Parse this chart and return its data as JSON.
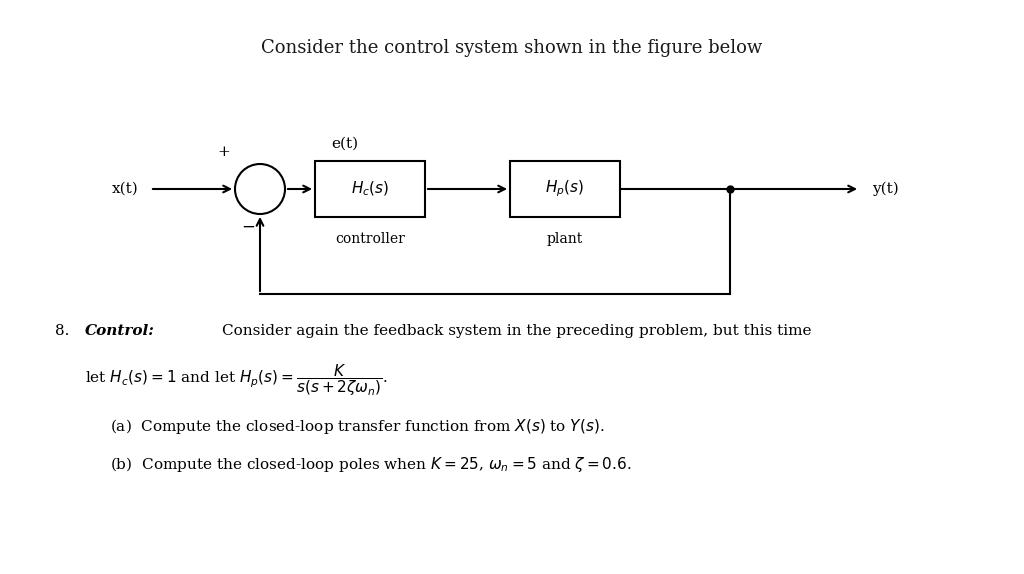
{
  "title": "Consider the control system shown in the figure below",
  "title_fontsize": 13,
  "background_color": "#ffffff",
  "text_color": "#1a1a1a",
  "fig_width": 10.24,
  "fig_height": 5.74,
  "block_diagram": {
    "x_input_label": "x(t)",
    "y_output_label": "y(t)",
    "et_label": "e(t)",
    "plus_label": "+",
    "minus_label": "−",
    "controller_box_label": "$H_c(s)$",
    "controller_text": "controller",
    "plant_box_label": "$H_p(s)$",
    "plant_text": "plant"
  },
  "problem_text_line1": "8.  ",
  "problem_italic": "Control:",
  "problem_text_rest1": " Consider again the feedback system in the preceding problem, but this time",
  "problem_text_line2": "let $H_c(s) = 1$ and let $H_p(s) = \\dfrac{K}{s(s+2\\zeta\\omega_n)}$.",
  "sub_a": "(a)  Compute the closed-loop transfer function from $X(s)$ to $Y(s)$.",
  "sub_b": "(b)  Compute the closed-loop poles when $K = 25$, $\\omega_n = 5$ and $\\zeta = 0.6$."
}
